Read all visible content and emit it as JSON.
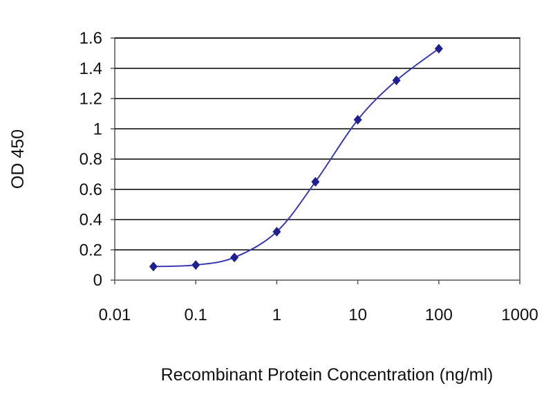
{
  "chart_data": {
    "type": "scatter",
    "title": "",
    "xlabel": "Recombinant Protein Concentration (ng/ml)",
    "ylabel": "OD 450",
    "x_scale": "log",
    "xlim": [
      0.01,
      1000
    ],
    "ylim": [
      0,
      1.6
    ],
    "x_ticks": [
      "0.01",
      "0.1",
      "1",
      "10",
      "100",
      "1000"
    ],
    "y_ticks": [
      "0",
      "0.2",
      "0.4",
      "0.6",
      "0.8",
      "1",
      "1.2",
      "1.4",
      "1.6"
    ],
    "grid": "horizontal",
    "series": [
      {
        "x": [
          0.03,
          0.1,
          0.3,
          1,
          3,
          10,
          30,
          100
        ],
        "y": [
          0.09,
          0.1,
          0.15,
          0.32,
          0.65,
          1.06,
          1.32,
          1.53
        ]
      }
    ],
    "colors": {
      "series": "#1f1f8f",
      "line": "#3a3ab0",
      "grid": "#000000"
    }
  }
}
